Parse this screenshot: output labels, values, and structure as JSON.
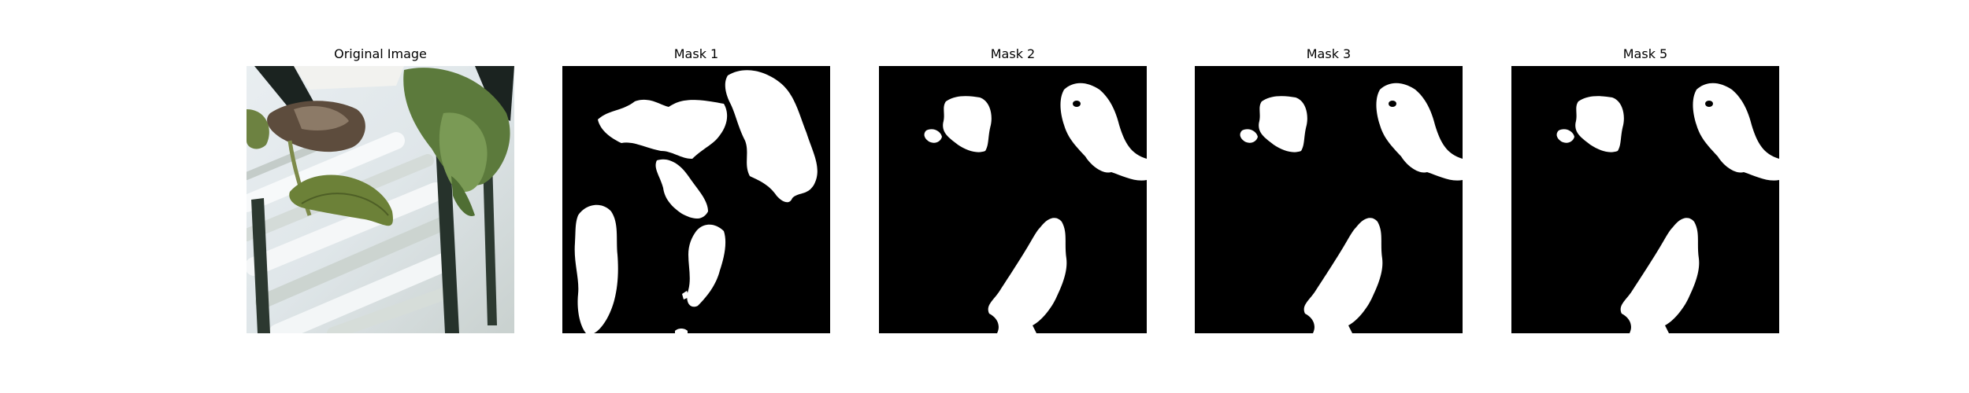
{
  "panels": [
    {
      "title": "Original Image",
      "kind": "photo"
    },
    {
      "title": "Mask 1",
      "kind": "mask"
    },
    {
      "title": "Mask 2",
      "kind": "mask"
    },
    {
      "title": "Mask 3",
      "kind": "mask"
    },
    {
      "title": "Mask 5",
      "kind": "mask"
    }
  ],
  "colors": {
    "background": "#ffffff",
    "mask_bg": "#000000",
    "mask_fg": "#ffffff",
    "leaf_green": "#6b7f3a",
    "dead_leaf": "#5e4e3e",
    "stem_dark": "#1f2a22"
  }
}
